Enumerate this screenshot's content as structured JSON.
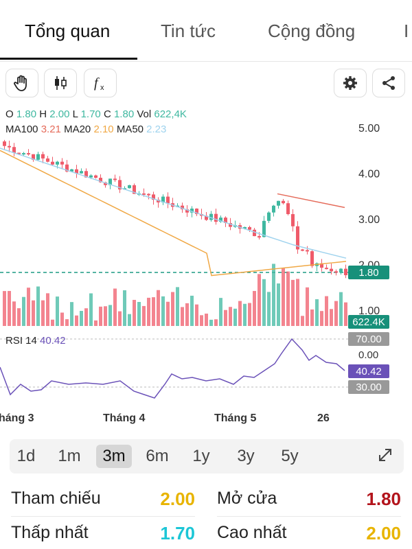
{
  "tabs": [
    {
      "label": "Tổng quan"
    },
    {
      "label": "Tin tức"
    },
    {
      "label": "Cộng đồng"
    }
  ],
  "toolbar": {
    "left_icons": [
      "hand-icon",
      "candlestick-icon",
      "fx-icon"
    ],
    "right_icons": [
      "gear-icon",
      "share-icon"
    ]
  },
  "ohlc": {
    "o_label": "O",
    "o": "1.80",
    "h_label": "H",
    "h": "2.00",
    "l_label": "L",
    "l": "1.70",
    "c_label": "C",
    "c": "1.80",
    "vol_label": "Vol",
    "vol": "622,4K"
  },
  "ma": {
    "ma100_label": "MA100",
    "ma100": "3.21",
    "ma20_label": "MA20",
    "ma20": "2.10",
    "ma50_label": "MA50",
    "ma50": "2.23"
  },
  "rsi": {
    "label": "RSI 14",
    "value": "40.42"
  },
  "price_axis": [
    "5.00",
    "4.00",
    "3.00",
    "2.00",
    "1.00"
  ],
  "price_tag": "1.80",
  "volume_tag": "622.4K",
  "rsi_axis": {
    "upper": "70.00",
    "zero": "0.00",
    "current": "40.42",
    "lower": "30.00"
  },
  "time_axis": [
    "háng 3",
    "Tháng 4",
    "Tháng 5",
    "26"
  ],
  "periods": [
    {
      "label": "1d"
    },
    {
      "label": "1m"
    },
    {
      "label": "3m"
    },
    {
      "label": "6m"
    },
    {
      "label": "1y"
    },
    {
      "label": "3y"
    },
    {
      "label": "5y"
    }
  ],
  "active_period": "3m",
  "stats": {
    "ref_label": "Tham chiếu",
    "ref_value": "2.00",
    "open_label": "Mở cửa",
    "open_value": "1.80",
    "low_label": "Thấp nhất",
    "low_value": "1.70",
    "high_label": "Cao nhất",
    "high_value": "2.00"
  },
  "colors": {
    "up": "#3fb8a0",
    "down": "#ef5b6a",
    "ma20": "#f0a845",
    "ma50": "#9fd3ee",
    "ma100": "#e56b5a",
    "rsi": "#6a51b8",
    "tag_price": "#17907a",
    "tag_gray": "#8f8f8f",
    "ref": "#e8b400",
    "open": "#b3141c",
    "low": "#1cc6d6",
    "high": "#e8b400"
  }
}
